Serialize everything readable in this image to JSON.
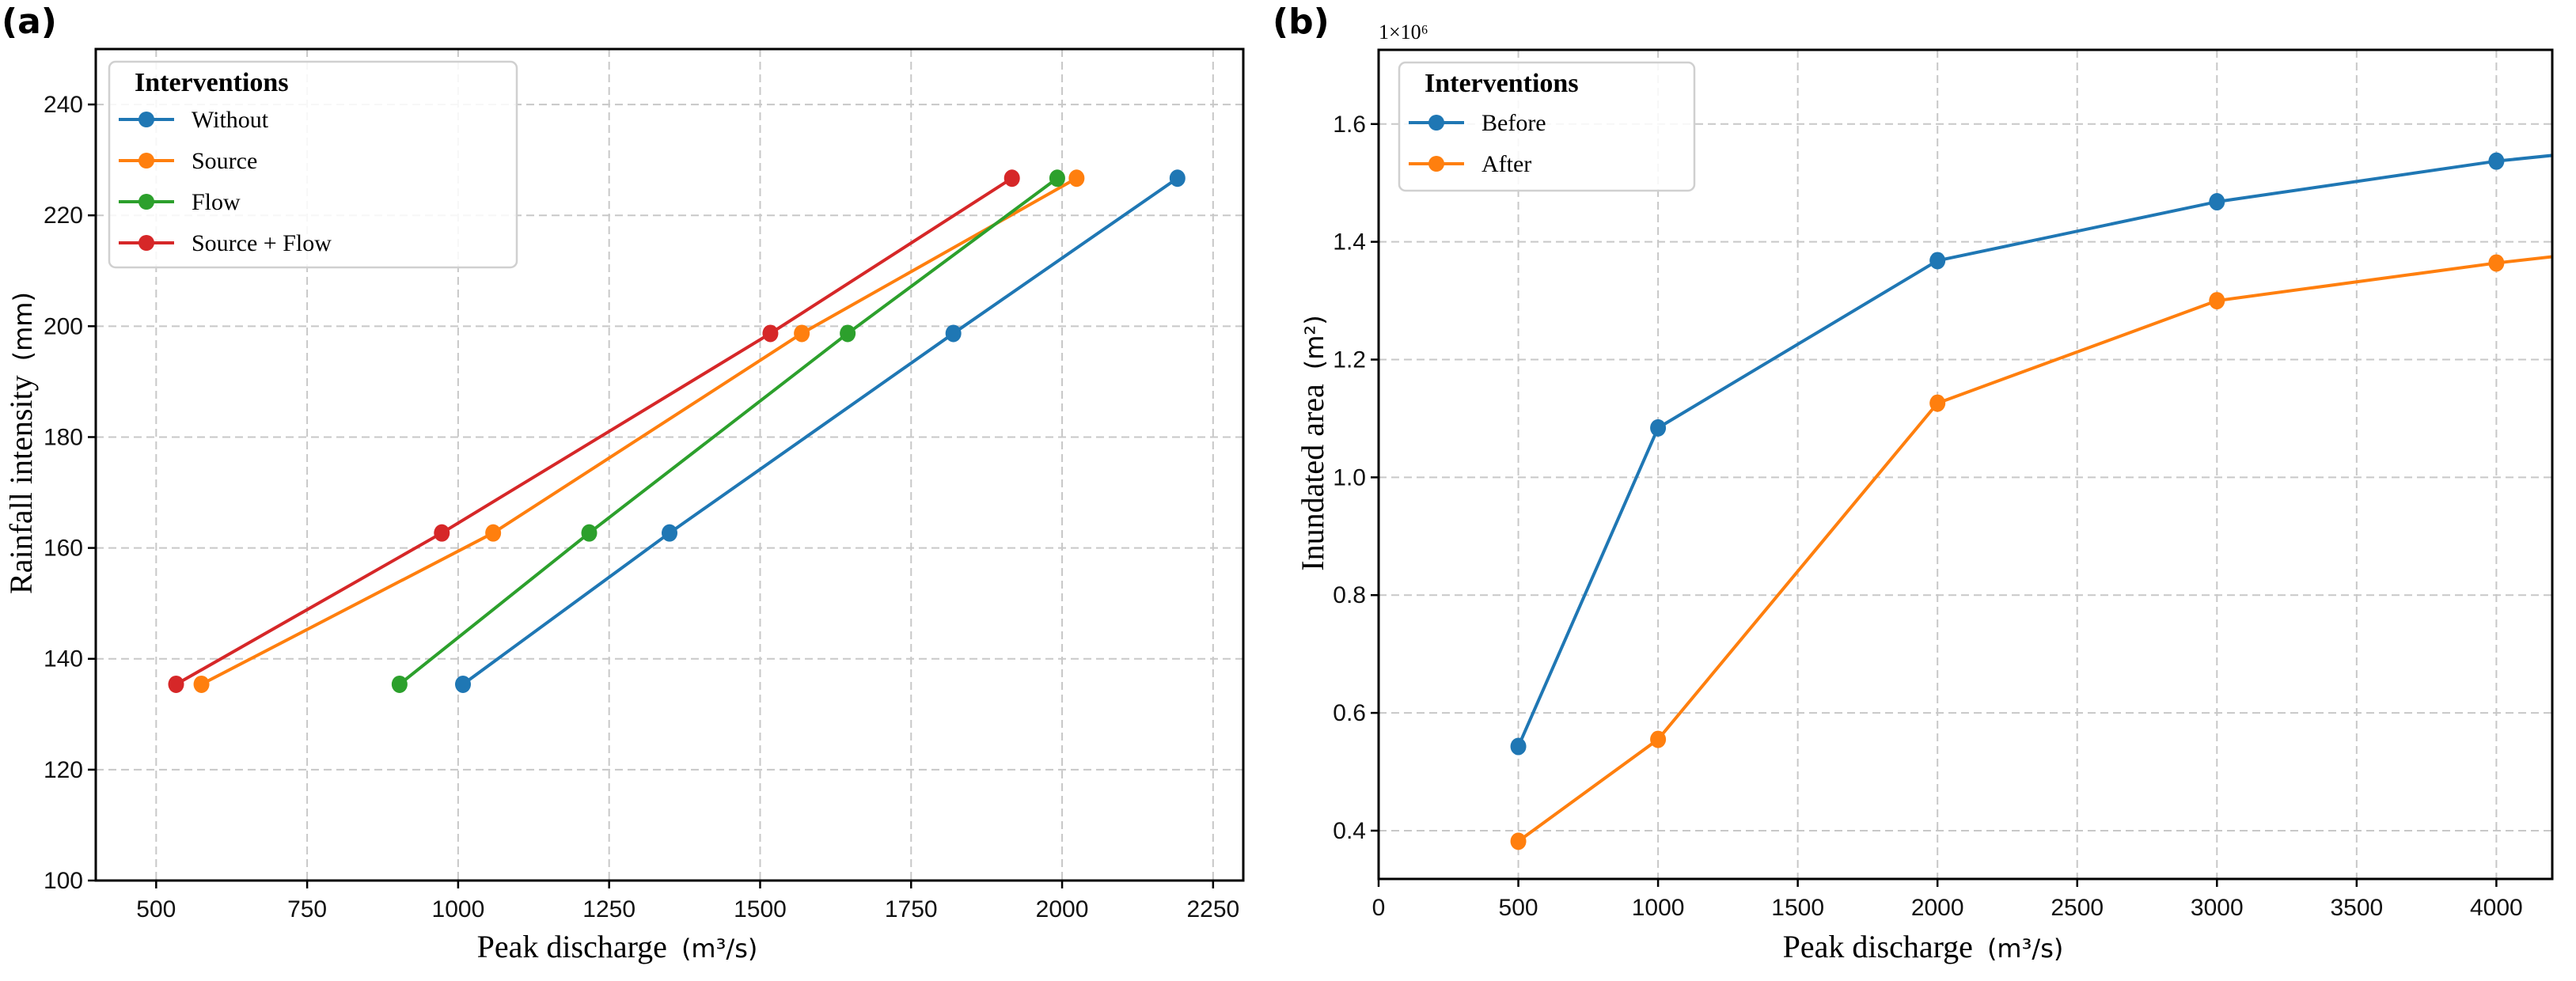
{
  "figure": {
    "panels": [
      "(a)",
      "(b)"
    ]
  },
  "chart_data": [
    {
      "type": "line",
      "panel_label": "(a)",
      "title": "",
      "xlabel": "Peak discharge",
      "xlabel_unit": "(m³/s)",
      "ylabel": "Rainfall intensity",
      "ylabel_unit": "(mm)",
      "xlim": [
        400,
        2300
      ],
      "ylim": [
        100,
        250
      ],
      "xticks": [
        500,
        750,
        1000,
        1250,
        1500,
        1750,
        2000,
        2250
      ],
      "yticks": [
        100,
        120,
        140,
        160,
        180,
        200,
        220,
        240
      ],
      "grid": true,
      "legend": {
        "title": "Interventions",
        "position": "top-left"
      },
      "series": [
        {
          "name": "Without",
          "color": "#1f77b4",
          "points": [
            [
              1008,
              135.4
            ],
            [
              1350,
              162.7
            ],
            [
              1820,
              198.7
            ],
            [
              2191,
              226.7
            ]
          ]
        },
        {
          "name": "Source",
          "color": "#ff7f0e",
          "points": [
            [
              575,
              135.4
            ],
            [
              1058,
              162.7
            ],
            [
              1569,
              198.7
            ],
            [
              2024,
              226.7
            ]
          ]
        },
        {
          "name": "Flow",
          "color": "#2ca02c",
          "points": [
            [
              903,
              135.4
            ],
            [
              1217,
              162.7
            ],
            [
              1645,
              198.7
            ],
            [
              1992,
              226.7
            ]
          ]
        },
        {
          "name": "Source + Flow",
          "color": "#d62728",
          "points": [
            [
              533,
              135.4
            ],
            [
              973,
              162.7
            ],
            [
              1517,
              198.7
            ],
            [
              1917,
              226.7
            ]
          ]
        }
      ]
    },
    {
      "type": "line",
      "panel_label": "(b)",
      "title": "",
      "xlabel": "Peak discharge",
      "xlabel_unit": "(m³/s)",
      "ylabel": "Inundated area",
      "ylabel_unit": "(m²)",
      "y_offset_label": "1×10⁶",
      "xlim": [
        0,
        4200
      ],
      "ylim": [
        0.318,
        1.726
      ],
      "xticks": [
        0,
        500,
        1000,
        1500,
        2000,
        2500,
        3000,
        3500,
        4000
      ],
      "yticks": [
        0.4,
        0.6,
        0.8,
        1.0,
        1.2,
        1.4,
        1.6
      ],
      "ytick_labels": [
        "0.4",
        "0.6",
        "0.8",
        "1.0",
        "1.2",
        "1.4",
        "1.6"
      ],
      "grid": true,
      "legend": {
        "title": "Interventions",
        "position": "top-left"
      },
      "series": [
        {
          "name": "Before",
          "color": "#1f77b4",
          "points": [
            [
              500,
              0.543
            ],
            [
              1000,
              1.084
            ],
            [
              2000,
              1.368
            ],
            [
              3000,
              1.468
            ],
            [
              4000,
              1.537
            ]
          ],
          "continues_to_edge": 1.547
        },
        {
          "name": "After",
          "color": "#ff7f0e",
          "points": [
            [
              500,
              0.382
            ],
            [
              1000,
              0.555
            ],
            [
              2000,
              1.126
            ],
            [
              3000,
              1.3
            ],
            [
              4000,
              1.364
            ]
          ],
          "continues_to_edge": 1.375
        }
      ]
    }
  ]
}
